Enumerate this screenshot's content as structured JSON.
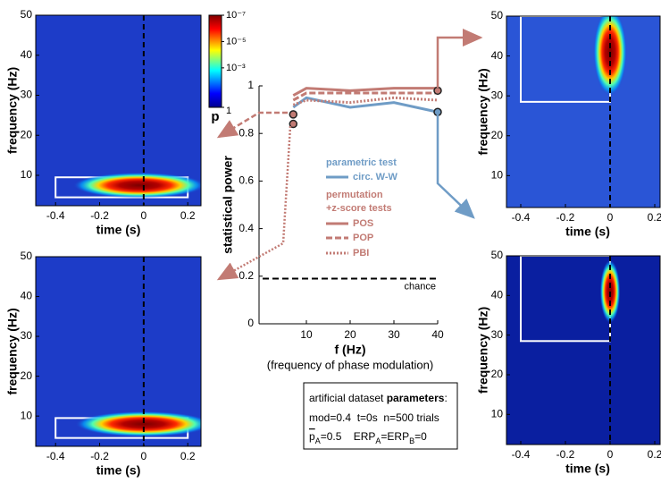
{
  "chart_data": [
    {
      "type": "heatmap",
      "xlabel": "time (s)",
      "ylabel": "frequency (Hz)",
      "xlim": [
        -0.49,
        0.26
      ],
      "ylim": [
        2.4,
        50
      ],
      "xticks": [
        -0.4,
        -0.2,
        0,
        0.2
      ],
      "yticks": [
        10,
        20,
        30,
        40,
        50
      ],
      "background": "#1d3cc8",
      "event_time": 0,
      "roi": {
        "t": [
          -0.4,
          0.2
        ],
        "f": [
          4.5,
          9.5
        ]
      },
      "blob": {
        "t": -0.02,
        "f": 7.5,
        "t_half": 0.3,
        "f_half": 3.2
      },
      "colorbar": {
        "label": "p",
        "log": true,
        "ticks": [
          {
            "value": 1e-07,
            "label": "10⁻⁷"
          },
          {
            "value": 1e-05,
            "label": "10⁻⁵"
          },
          {
            "value": 0.001,
            "label": "10⁻³"
          },
          1
        ]
      }
    },
    {
      "type": "heatmap",
      "xlabel": "time (s)",
      "ylabel": "frequency (Hz)",
      "xlim": [
        -0.49,
        0.26
      ],
      "ylim": [
        2.4,
        50
      ],
      "xticks": [
        -0.4,
        -0.2,
        0,
        0.2
      ],
      "yticks": [
        10,
        20,
        30,
        40,
        50
      ],
      "background": "#1d3cc8",
      "event_time": 0,
      "roi": {
        "t": [
          -0.4,
          0.2
        ],
        "f": [
          4.5,
          9.5
        ]
      },
      "blob": {
        "t": 0,
        "f": 8,
        "t_half": 0.31,
        "f_half": 3.2
      }
    },
    {
      "type": "line",
      "xlabel": "f (Hz)",
      "xlabel_note": "(frequency of phase modulation)",
      "ylabel": "statistical power",
      "xlim": [
        0,
        40
      ],
      "ylim": [
        0,
        1
      ],
      "xticks": [
        10,
        20,
        30,
        40
      ],
      "yticks": [
        0,
        0.2,
        0.4,
        0.6,
        0.8,
        1
      ],
      "x": [
        7,
        10,
        20,
        30,
        40
      ],
      "series": [
        {
          "name": "circ. W-W",
          "color": "#6f9cc6",
          "style": "solid",
          "values": [
            0.91,
            0.95,
            0.91,
            0.93,
            0.89
          ]
        },
        {
          "name": "POS",
          "color": "#c27b74",
          "style": "solid",
          "values": [
            0.96,
            0.99,
            0.98,
            0.99,
            0.99
          ]
        },
        {
          "name": "POP",
          "color": "#c27b74",
          "style": "dashed",
          "values": [
            0.94,
            0.97,
            0.97,
            0.97,
            0.97
          ]
        },
        {
          "name": "PBI",
          "color": "#c27b74",
          "style": "dotted",
          "values": [
            0.92,
            0.94,
            0.93,
            0.95,
            0.94
          ]
        }
      ],
      "legend_titles": [
        {
          "text": "parametric test",
          "color": "#6f9cc6"
        },
        {
          "text": "permutation",
          "color": "#c27b74"
        },
        {
          "text": "+z-score tests",
          "color": "#c27b74"
        }
      ],
      "highlights": [
        {
          "x": 7,
          "y": 0.88,
          "color": "#c27b74"
        },
        {
          "x": 7,
          "y": 0.84,
          "color": "#c27b74"
        },
        {
          "x": 40,
          "y": 0.98,
          "color": "#c27b74"
        },
        {
          "x": 40,
          "y": 0.89,
          "color": "#6f9cc6"
        }
      ],
      "chance": {
        "y": 0.19,
        "label": "chance"
      }
    },
    {
      "type": "heatmap",
      "xlabel": "time (s)",
      "ylabel": "frequency (Hz)",
      "xlim": [
        -0.464,
        0.224
      ],
      "ylim": [
        2,
        50
      ],
      "xticks": [
        -0.4,
        -0.2,
        0,
        0.2
      ],
      "yticks": [
        10,
        20,
        30,
        40,
        50
      ],
      "background": "#2a55d6",
      "event_time": 0,
      "roi": {
        "t": [
          -0.4,
          0
        ],
        "f": [
          28.5,
          50
        ]
      },
      "blob": {
        "t": 0,
        "f": 41,
        "t_half": 0.075,
        "f_half": 11
      }
    },
    {
      "type": "heatmap",
      "xlabel": "time (s)",
      "ylabel": "frequency (Hz)",
      "xlim": [
        -0.464,
        0.224
      ],
      "ylim": [
        2.4,
        50
      ],
      "xticks": [
        -0.4,
        -0.2,
        0,
        0.2
      ],
      "yticks": [
        10,
        20,
        30,
        40,
        50
      ],
      "background": "#0a1fa0",
      "event_time": 0,
      "roi": {
        "t": [
          -0.4,
          0
        ],
        "f": [
          28.5,
          50
        ]
      },
      "blob": {
        "t": 0,
        "f": 41,
        "t_half": 0.045,
        "f_half": 8
      }
    }
  ],
  "parameters": {
    "line1": [
      "artificial dataset ",
      "parameters",
      ":"
    ],
    "line2": "mod=0.4  t=0s  n=500 trials",
    "line3": [
      "p",
      "A",
      "=0.5    ERP",
      "A",
      "=ERP",
      "B",
      "=0"
    ]
  }
}
